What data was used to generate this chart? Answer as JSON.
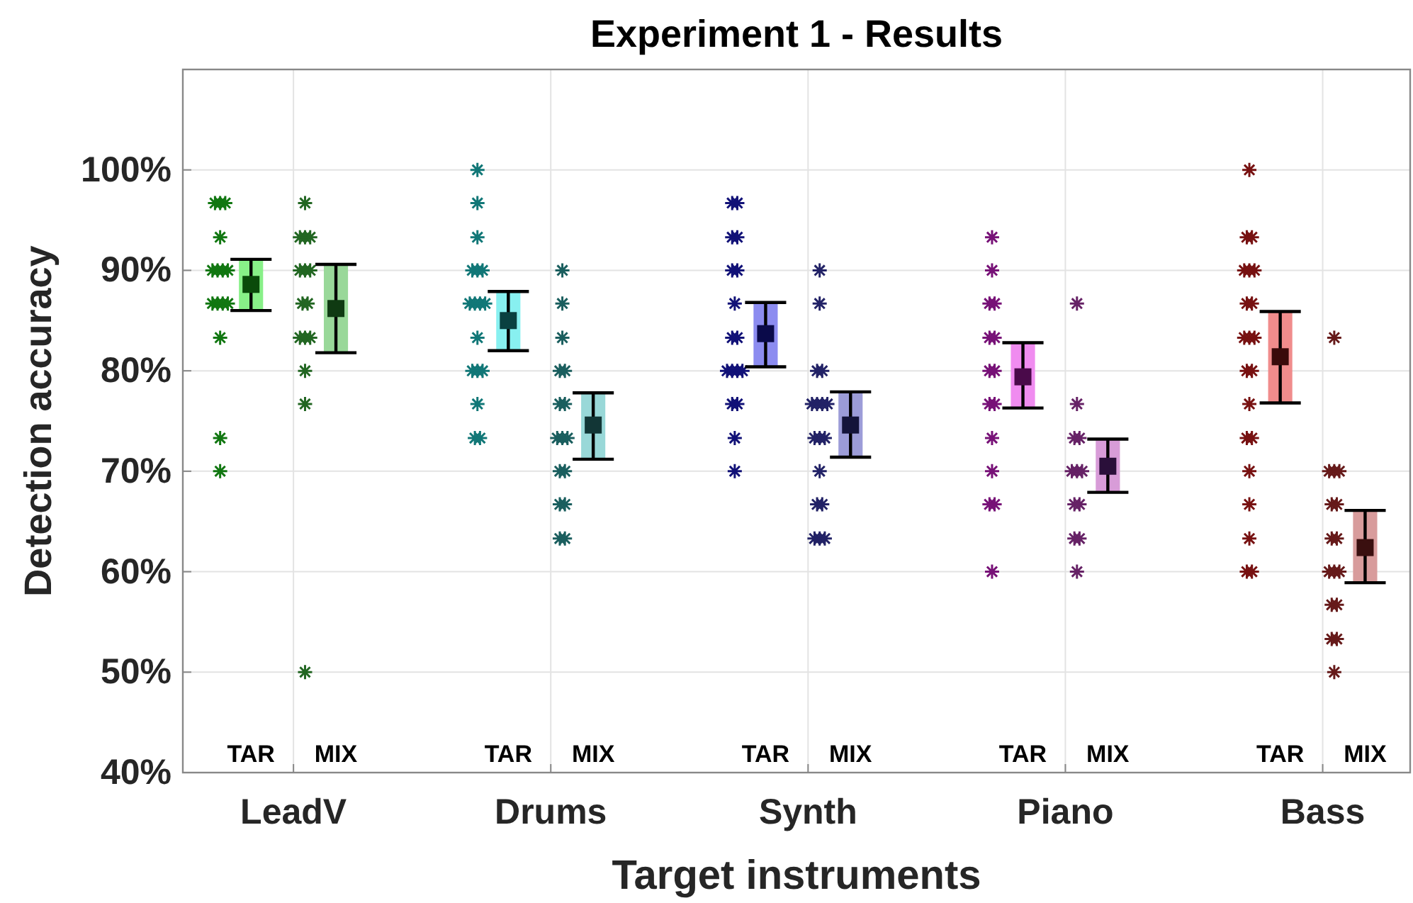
{
  "chart_data": {
    "type": "scatter",
    "title": "Experiment 1 - Results",
    "xlabel": "Target instruments",
    "ylabel": "Detection accuracy",
    "categories": [
      "LeadV",
      "Drums",
      "Synth",
      "Piano",
      "Bass"
    ],
    "ylim": [
      40,
      110
    ],
    "yticks": [
      {
        "value": 40,
        "label": "40%"
      },
      {
        "value": 50,
        "label": "50%"
      },
      {
        "value": 60,
        "label": "60%"
      },
      {
        "value": 70,
        "label": "70%"
      },
      {
        "value": 80,
        "label": "80%"
      },
      {
        "value": 90,
        "label": "90%"
      },
      {
        "value": 100,
        "label": "100%"
      }
    ],
    "grid": true,
    "series": [
      {
        "type": "bar",
        "base": [
          86.0,
          82.0,
          80.4,
          76.3,
          76.8
        ],
        "values": [
          5.1,
          5.9,
          6.4,
          6.5,
          9.1
        ],
        "colors": [
          "#88f088",
          "#88f0f0",
          "#8c8cf0",
          "#f08cf0",
          "#f08c8c"
        ]
      },
      {
        "type": "bar",
        "base": [
          81.8,
          71.2,
          71.4,
          67.9,
          58.9
        ],
        "values": [
          8.8,
          6.6,
          6.5,
          5.3,
          7.2
        ],
        "colors": [
          "#99d899",
          "#99d8d8",
          "#9c9cd8",
          "#d89cd8",
          "#d89c9c"
        ]
      },
      {
        "marker": "cross",
        "x": [
          "LeadV",
          "LeadV",
          "LeadV",
          "LeadV",
          "LeadV",
          "LeadV",
          "LeadV",
          "LeadV",
          "LeadV",
          "LeadV",
          "LeadV",
          "LeadV",
          "LeadV",
          "LeadV",
          "LeadV",
          "Drums",
          "Drums",
          "Drums",
          "Drums",
          "Drums",
          "Drums",
          "Drums",
          "Drums",
          "Drums",
          "Drums",
          "Drums",
          "Drums",
          "Drums",
          "Drums",
          "Drums",
          "Drums",
          "Drums",
          "Synth",
          "Synth",
          "Synth",
          "Synth",
          "Synth",
          "Synth",
          "Synth",
          "Synth",
          "Synth",
          "Synth",
          "Synth",
          "Synth",
          "Synth",
          "Synth",
          "Synth",
          "Synth",
          "Synth",
          "Piano",
          "Piano",
          "Piano",
          "Piano",
          "Piano",
          "Piano",
          "Piano",
          "Piano",
          "Piano",
          "Piano",
          "Piano",
          "Piano",
          "Piano",
          "Piano",
          "Piano",
          "Bass",
          "Bass",
          "Bass",
          "Bass",
          "Bass",
          "Bass",
          "Bass",
          "Bass",
          "Bass",
          "Bass",
          "Bass",
          "Bass",
          "Bass",
          "Bass",
          "Bass",
          "Bass",
          "Bass",
          "Bass",
          "Bass",
          "Bass",
          "Bass"
        ],
        "values": [
          96.7,
          96.7,
          96.7,
          93.3,
          90,
          90,
          90,
          90,
          86.7,
          86.7,
          86.7,
          86.7,
          83.3,
          73.3,
          70,
          100,
          96.7,
          93.3,
          90,
          90,
          90,
          86.7,
          86.7,
          86.7,
          86.7,
          83.3,
          80,
          80,
          80,
          76.7,
          73.3,
          73.3,
          96.7,
          96.7,
          93.3,
          93.3,
          90,
          90,
          86.7,
          83.3,
          83.3,
          80,
          80,
          80,
          80,
          76.7,
          76.7,
          73.3,
          70,
          93.3,
          90,
          86.7,
          86.7,
          83.3,
          83.3,
          80,
          80,
          76.7,
          76.7,
          73.3,
          70,
          66.7,
          66.7,
          60,
          100,
          93.3,
          93.3,
          90,
          90,
          90,
          86.7,
          86.7,
          83.3,
          83.3,
          83.3,
          80,
          80,
          76.7,
          73.3,
          73.3,
          70,
          66.7,
          63.3,
          60,
          60
        ],
        "colors": [
          "#117711",
          "#117711",
          "#117711",
          "#117711",
          "#117711",
          "#117711",
          "#117711",
          "#117711",
          "#117711",
          "#117711",
          "#117711",
          "#117711",
          "#117711",
          "#117711",
          "#117711",
          "#117777",
          "#117777",
          "#117777",
          "#117777",
          "#117777",
          "#117777",
          "#117777",
          "#117777",
          "#117777",
          "#117777",
          "#117777",
          "#117777",
          "#117777",
          "#117777",
          "#117777",
          "#117777",
          "#117777",
          "#111177",
          "#111177",
          "#111177",
          "#111177",
          "#111177",
          "#111177",
          "#111177",
          "#111177",
          "#111177",
          "#111177",
          "#111177",
          "#111177",
          "#111177",
          "#111177",
          "#111177",
          "#111177",
          "#111177",
          "#771177",
          "#771177",
          "#771177",
          "#771177",
          "#771177",
          "#771177",
          "#771177",
          "#771177",
          "#771177",
          "#771177",
          "#771177",
          "#771177",
          "#771177",
          "#771177",
          "#771177",
          "#771111",
          "#771111",
          "#771111",
          "#771111",
          "#771111",
          "#771111",
          "#771111",
          "#771111",
          "#771111",
          "#771111",
          "#771111",
          "#771111",
          "#771111",
          "#771111",
          "#771111",
          "#771111",
          "#771111",
          "#771111",
          "#771111",
          "#771111",
          "#771111"
        ]
      },
      {
        "marker": "cross",
        "x": [
          "LeadV",
          "LeadV",
          "LeadV",
          "LeadV",
          "LeadV",
          "LeadV",
          "LeadV",
          "LeadV",
          "LeadV",
          "LeadV",
          "LeadV",
          "LeadV",
          "LeadV",
          "LeadV",
          "LeadV",
          "Drums",
          "Drums",
          "Drums",
          "Drums",
          "Drums",
          "Drums",
          "Drums",
          "Drums",
          "Drums",
          "Drums",
          "Drums",
          "Drums",
          "Drums",
          "Drums",
          "Drums",
          "Drums",
          "Synth",
          "Synth",
          "Synth",
          "Synth",
          "Synth",
          "Synth",
          "Synth",
          "Synth",
          "Synth",
          "Synth",
          "Synth",
          "Synth",
          "Synth",
          "Synth",
          "Synth",
          "Synth",
          "Synth",
          "Piano",
          "Piano",
          "Piano",
          "Piano",
          "Piano",
          "Piano",
          "Piano",
          "Piano",
          "Piano",
          "Piano",
          "Piano",
          "Piano",
          "Bass",
          "Bass",
          "Bass",
          "Bass",
          "Bass",
          "Bass",
          "Bass",
          "Bass",
          "Bass",
          "Bass",
          "Bass",
          "Bass",
          "Bass",
          "Bass",
          "Bass",
          "Bass"
        ],
        "values": [
          96.7,
          93.3,
          93.3,
          93.3,
          90,
          90,
          90,
          86.7,
          86.7,
          83.3,
          83.3,
          83.3,
          80,
          76.7,
          50,
          90,
          86.7,
          83.3,
          80,
          80,
          76.7,
          76.7,
          73.3,
          73.3,
          73.3,
          70,
          70,
          66.7,
          66.7,
          63.3,
          63.3,
          90,
          86.7,
          80,
          80,
          76.7,
          76.7,
          76.7,
          76.7,
          73.3,
          73.3,
          73.3,
          70,
          66.7,
          66.7,
          63.3,
          63.3,
          63.3,
          86.7,
          76.7,
          73.3,
          73.3,
          70,
          70,
          70,
          66.7,
          66.7,
          63.3,
          63.3,
          60,
          83.3,
          70,
          70,
          70,
          66.7,
          66.7,
          63.3,
          63.3,
          60,
          60,
          60,
          56.7,
          56.7,
          53.3,
          53.3,
          50
        ],
        "colors": [
          "#226622",
          "#226622",
          "#226622",
          "#226622",
          "#226622",
          "#226622",
          "#226622",
          "#226622",
          "#226622",
          "#226622",
          "#226622",
          "#226622",
          "#226622",
          "#226622",
          "#226622",
          "#1a5e5e",
          "#1a5e5e",
          "#1a5e5e",
          "#1a5e5e",
          "#1a5e5e",
          "#1a5e5e",
          "#1a5e5e",
          "#1a5e5e",
          "#1a5e5e",
          "#1a5e5e",
          "#1a5e5e",
          "#1a5e5e",
          "#1a5e5e",
          "#1a5e5e",
          "#1a5e5e",
          "#1a5e5e",
          "#222266",
          "#222266",
          "#222266",
          "#222266",
          "#222266",
          "#222266",
          "#222266",
          "#222266",
          "#222266",
          "#222266",
          "#222266",
          "#222266",
          "#222266",
          "#222266",
          "#222266",
          "#222266",
          "#222266",
          "#662266",
          "#662266",
          "#662266",
          "#662266",
          "#662266",
          "#662266",
          "#662266",
          "#662266",
          "#662266",
          "#662266",
          "#662266",
          "#662266",
          "#661a1a",
          "#661a1a",
          "#661a1a",
          "#661a1a",
          "#661a1a",
          "#661a1a",
          "#661a1a",
          "#661a1a",
          "#661a1a",
          "#661a1a",
          "#661a1a",
          "#661a1a",
          "#661a1a",
          "#661a1a",
          "#661a1a",
          "#661a1a"
        ]
      },
      {
        "name": "TAR",
        "marker": "square",
        "values": [
          88.6,
          85.0,
          83.7,
          79.4,
          81.4
        ],
        "colors": [
          "#0a4a0a",
          "#0a4040",
          "#0a0a4a",
          "#4a0a4a",
          "#3a0a0a"
        ],
        "errors": [
          [
            86.0,
            91.1
          ],
          [
            82.0,
            87.9
          ],
          [
            80.4,
            86.8
          ],
          [
            76.3,
            82.8
          ],
          [
            76.8,
            85.9
          ]
        ]
      },
      {
        "name": "MIX",
        "marker": "square",
        "values": [
          86.2,
          74.6,
          74.6,
          70.5,
          62.4
        ],
        "colors": [
          "#0f3a12",
          "#123636",
          "#14143a",
          "#2a0f3a",
          "#3a0f0f"
        ],
        "errors": [
          [
            81.8,
            90.6
          ],
          [
            71.2,
            77.8
          ],
          [
            71.4,
            77.9
          ],
          [
            67.9,
            73.2
          ],
          [
            58.9,
            66.1
          ]
        ]
      }
    ]
  }
}
